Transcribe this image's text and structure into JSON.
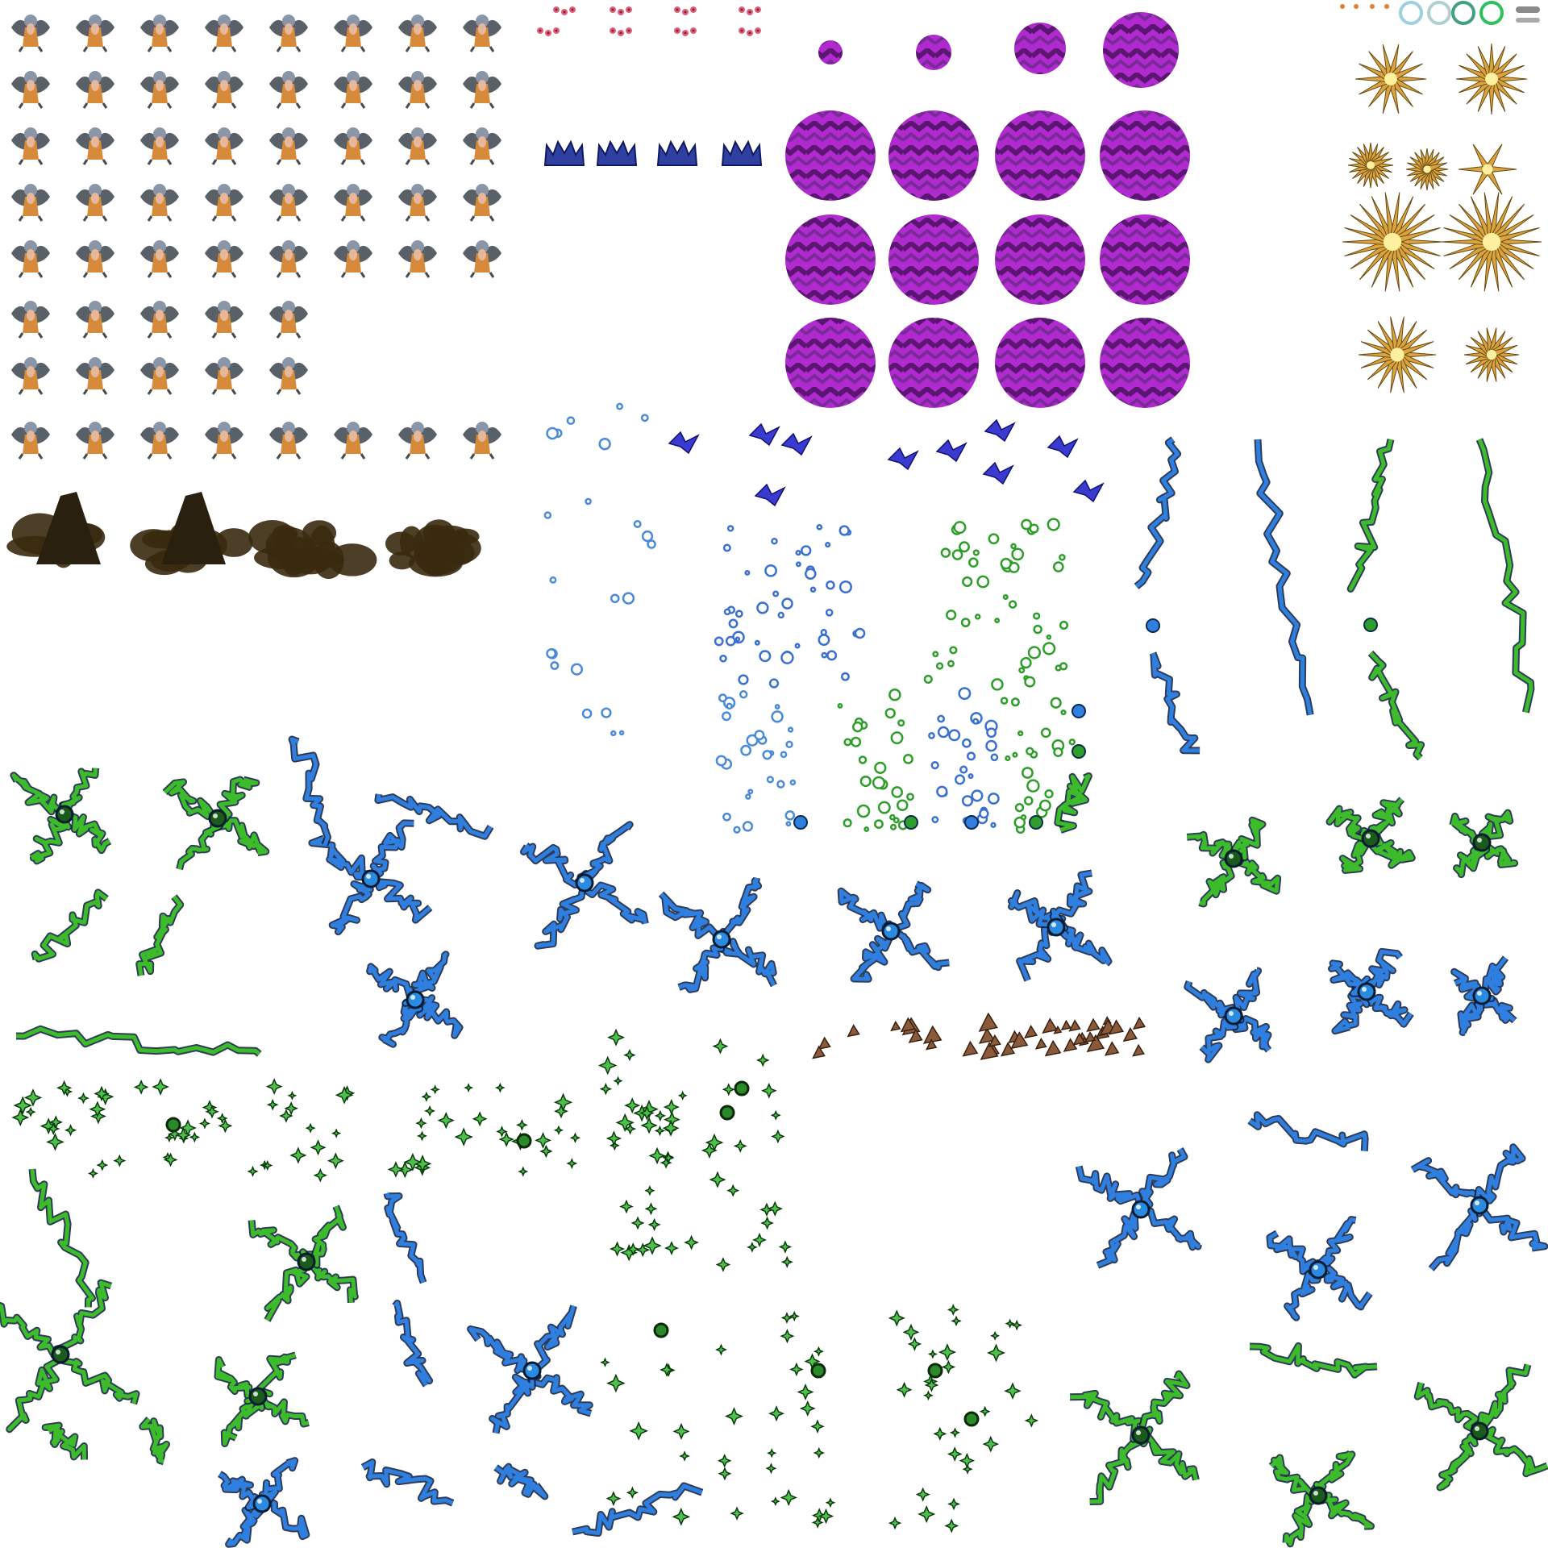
{
  "sheet": {
    "kind": "sprite-sheet",
    "background": "#ffffff",
    "regions": [
      {
        "name": "harpy-character-frames",
        "rows": 8,
        "columns": 8,
        "icon": "winged-harpy-sprite"
      },
      {
        "name": "pink-flower-frames",
        "rows": 2,
        "columns": 4,
        "icon": "flower-cluster"
      },
      {
        "name": "blue-crown-frames",
        "count": 4,
        "icon": "blue-crown"
      },
      {
        "name": "purple-orb-frames",
        "count": 16,
        "icon": "purple-zigzag-orb"
      },
      {
        "name": "golden-burst-frames",
        "count": 9,
        "icon": "golden-spike-burst"
      },
      {
        "name": "dark-smoke-frames",
        "count": 4,
        "icon": "dark-smoke-cloud"
      },
      {
        "name": "blue-shard-frames",
        "count": 10,
        "icon": "blue-shard"
      },
      {
        "name": "bubble-particle-frames",
        "count": 8,
        "icon": "bubble-particles"
      },
      {
        "name": "lightning-bolt-frames",
        "count": 8,
        "icon": "lightning-bolt"
      },
      {
        "name": "cross-lightning-frames",
        "count": 18,
        "icon": "cross-lightning-orb"
      },
      {
        "name": "sparkle-frames",
        "count": 12,
        "icon": "green-sparkle"
      },
      {
        "name": "rock-debris-frames",
        "count": 5,
        "icon": "rock-debris"
      }
    ],
    "colors": {
      "orb_purple": "#b02ad0",
      "orb_dark": "#5a1670",
      "lightning_blue": "#2f7fe0",
      "lightning_green": "#3cbc2a",
      "gold": "#d9a440",
      "smoke": "#3a2a10",
      "crown_blue": "#3040a0",
      "flower_pink": "#e0607a",
      "harpy_gray": "#5a6068",
      "harpy_orange": "#d68a3a"
    }
  }
}
